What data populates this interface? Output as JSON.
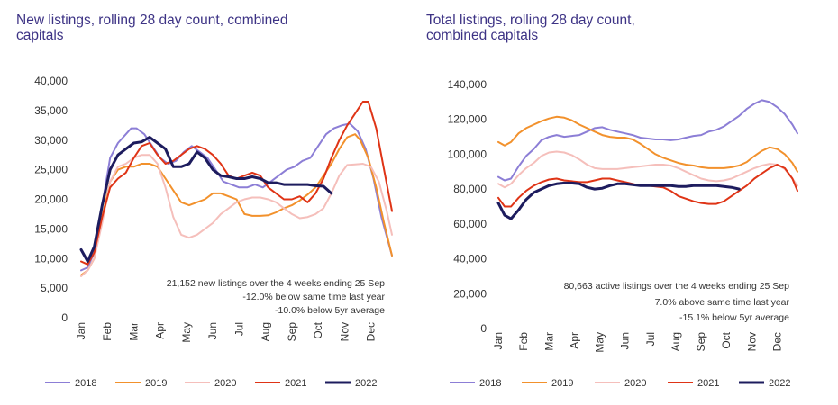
{
  "series_colors": {
    "2018": "#8c7ed6",
    "2019": "#f2912c",
    "2020": "#f5bfbb",
    "2021": "#df3416",
    "2022": "#1d1c5e"
  },
  "chart_data": [
    {
      "type": "line",
      "title_lines": [
        "New listings, rolling 28 day count, combined",
        "capitals"
      ],
      "xlabel": "",
      "ylabel": "",
      "ylim": [
        0,
        40000
      ],
      "yticks": [
        0,
        5000,
        10000,
        15000,
        20000,
        25000,
        30000,
        35000,
        40000
      ],
      "ytick_labels": [
        "0",
        "5,000",
        "10,000",
        "15,000",
        "20,000",
        "25,000",
        "30,000",
        "35,000",
        "40,000"
      ],
      "categories": [
        "Jan",
        "Feb",
        "Mar",
        "Apr",
        "May",
        "Jun",
        "Jul",
        "Aug",
        "Sep",
        "Oct",
        "Nov",
        "Dec"
      ],
      "xlim": [
        0,
        11.8
      ],
      "grid": false,
      "legend_position": "bottom",
      "annotations": [
        "21,152 new listings over the 4 weeks ending 25 Sep",
        "-12.0% below same time last year",
        "-10.0% below 5yr average"
      ],
      "series": [
        {
          "name": "2018",
          "x": [
            0,
            0.25,
            0.5,
            0.8,
            1.1,
            1.4,
            1.7,
            1.9,
            2.1,
            2.4,
            2.7,
            3.0,
            3.3,
            3.6,
            3.9,
            4.2,
            4.5,
            4.8,
            5.1,
            5.4,
            5.7,
            6.0,
            6.3,
            6.6,
            6.9,
            7.2,
            7.5,
            7.8,
            8.1,
            8.4,
            8.7,
            9.0,
            9.3,
            9.6,
            9.9,
            10.2,
            10.5,
            10.8,
            11.1,
            11.4,
            11.8
          ],
          "values": [
            8000,
            8500,
            11000,
            19000,
            27000,
            29500,
            31000,
            32000,
            32000,
            31000,
            29000,
            27000,
            26000,
            26500,
            28000,
            29000,
            28000,
            27000,
            25000,
            23000,
            22500,
            22000,
            22000,
            22500,
            22000,
            23000,
            24000,
            25000,
            25500,
            26500,
            27000,
            29000,
            31000,
            32000,
            32500,
            32800,
            31500,
            28500,
            23500,
            17000,
            10500
          ]
        },
        {
          "name": "2019",
          "x": [
            0,
            0.25,
            0.5,
            0.8,
            1.1,
            1.4,
            1.7,
            2.0,
            2.3,
            2.6,
            2.9,
            3.2,
            3.5,
            3.8,
            4.1,
            4.4,
            4.7,
            5.0,
            5.3,
            5.6,
            5.9,
            6.2,
            6.5,
            6.8,
            7.1,
            7.4,
            7.7,
            8.0,
            8.3,
            8.6,
            8.9,
            9.2,
            9.5,
            9.8,
            10.1,
            10.4,
            10.6,
            10.9,
            11.2,
            11.5,
            11.8
          ],
          "values": [
            7200,
            8000,
            10000,
            17000,
            23000,
            25000,
            25500,
            25500,
            26000,
            26000,
            25500,
            23500,
            21500,
            19500,
            19000,
            19500,
            20000,
            21000,
            21000,
            20500,
            20000,
            17500,
            17200,
            17200,
            17300,
            17800,
            18500,
            19000,
            19800,
            20800,
            22000,
            24000,
            26000,
            28500,
            30500,
            31000,
            30000,
            27000,
            22000,
            16000,
            10500
          ]
        },
        {
          "name": "2020",
          "x": [
            0,
            0.25,
            0.5,
            0.8,
            1.1,
            1.4,
            1.7,
            2.0,
            2.3,
            2.6,
            2.9,
            3.2,
            3.5,
            3.8,
            4.1,
            4.4,
            4.7,
            5.0,
            5.3,
            5.6,
            5.9,
            6.2,
            6.5,
            6.8,
            7.1,
            7.4,
            7.7,
            8.0,
            8.3,
            8.6,
            8.9,
            9.2,
            9.5,
            9.8,
            10.1,
            10.4,
            10.7,
            11.0,
            11.3,
            11.6,
            11.8
          ],
          "values": [
            7000,
            8000,
            10000,
            16000,
            23000,
            25500,
            26000,
            27000,
            27500,
            27500,
            26000,
            22000,
            17000,
            14000,
            13500,
            14000,
            15000,
            16000,
            17500,
            18500,
            19500,
            20000,
            20300,
            20300,
            20000,
            19500,
            18500,
            17500,
            16800,
            17000,
            17500,
            18500,
            21000,
            24000,
            25800,
            25900,
            26000,
            25500,
            23000,
            18000,
            14000
          ]
        },
        {
          "name": "2021",
          "x": [
            0,
            0.25,
            0.5,
            0.8,
            1.1,
            1.4,
            1.7,
            2.0,
            2.3,
            2.6,
            2.9,
            3.2,
            3.5,
            3.8,
            4.1,
            4.4,
            4.7,
            5.0,
            5.3,
            5.6,
            5.9,
            6.2,
            6.5,
            6.8,
            7.1,
            7.4,
            7.7,
            8.0,
            8.3,
            8.6,
            8.9,
            9.2,
            9.5,
            9.8,
            10.1,
            10.4,
            10.7,
            10.9,
            11.2,
            11.5,
            11.8
          ],
          "values": [
            9500,
            9000,
            11000,
            17000,
            22000,
            23500,
            24500,
            27000,
            29000,
            29500,
            27500,
            26000,
            26500,
            27500,
            28500,
            29000,
            28500,
            27500,
            26000,
            24000,
            23500,
            24000,
            24500,
            24000,
            22000,
            21000,
            20000,
            20000,
            20500,
            19500,
            21000,
            23500,
            27000,
            30000,
            32500,
            34500,
            36500,
            36500,
            32000,
            25000,
            18000
          ]
        },
        {
          "name": "2022",
          "x": [
            0,
            0.25,
            0.5,
            0.8,
            1.1,
            1.4,
            1.7,
            2.0,
            2.3,
            2.6,
            2.9,
            3.2,
            3.5,
            3.8,
            4.1,
            4.4,
            4.7,
            5.0,
            5.3,
            5.6,
            5.9,
            6.2,
            6.5,
            6.8,
            7.1,
            7.4,
            7.7,
            8.0,
            8.3,
            8.6,
            8.9,
            9.2,
            9.5
          ],
          "values": [
            11500,
            9500,
            12000,
            19000,
            25000,
            27500,
            28500,
            29500,
            29700,
            30500,
            29500,
            28500,
            25500,
            25500,
            26000,
            28000,
            27000,
            25000,
            24000,
            23800,
            23500,
            23500,
            23800,
            23500,
            22800,
            22800,
            22500,
            22500,
            22500,
            22500,
            22300,
            22200,
            21000
          ]
        }
      ]
    },
    {
      "type": "line",
      "title_lines": [
        "Total listings, rolling 28 day count,",
        "combined capitals"
      ],
      "xlabel": "",
      "ylabel": "",
      "ylim": [
        0,
        140000
      ],
      "yticks": [
        0,
        20000,
        40000,
        60000,
        80000,
        100000,
        120000,
        140000
      ],
      "ytick_labels": [
        "0",
        "20,000",
        "40,000",
        "60,000",
        "80,000",
        "100,000",
        "120,000",
        "140,000"
      ],
      "categories": [
        "Jan",
        "Feb",
        "Mar",
        "Apr",
        "May",
        "Jun",
        "Jul",
        "Aug",
        "Sep",
        "Oct",
        "Nov",
        "Dec"
      ],
      "xlim": [
        0,
        11.8
      ],
      "grid": false,
      "legend_position": "bottom",
      "annotations": [
        "80,663 active listings over the 4 weeks ending 25 Sep",
        "7.0% above same time last year",
        "-15.1% below 5yr average"
      ],
      "series": [
        {
          "name": "2018",
          "x": [
            0,
            0.25,
            0.5,
            0.8,
            1.1,
            1.4,
            1.7,
            2.0,
            2.3,
            2.6,
            2.9,
            3.2,
            3.5,
            3.8,
            4.1,
            4.4,
            4.7,
            5.0,
            5.3,
            5.6,
            5.9,
            6.2,
            6.5,
            6.8,
            7.1,
            7.4,
            7.7,
            8.0,
            8.3,
            8.6,
            8.9,
            9.2,
            9.5,
            9.8,
            10.1,
            10.4,
            10.7,
            11.0,
            11.3,
            11.6,
            11.8
          ],
          "values": [
            87000,
            85000,
            86000,
            93000,
            99000,
            103000,
            108000,
            110000,
            111000,
            110000,
            110500,
            111000,
            113000,
            115000,
            115500,
            114000,
            113000,
            112000,
            111000,
            109500,
            109000,
            108500,
            108500,
            108000,
            108500,
            109500,
            110500,
            111000,
            113000,
            114000,
            116000,
            119000,
            122000,
            126000,
            129000,
            131000,
            130000,
            127000,
            123000,
            117000,
            112000
          ]
        },
        {
          "name": "2019",
          "x": [
            0,
            0.25,
            0.5,
            0.8,
            1.1,
            1.4,
            1.7,
            2.0,
            2.3,
            2.6,
            2.9,
            3.2,
            3.5,
            3.8,
            4.1,
            4.4,
            4.7,
            5.0,
            5.3,
            5.6,
            5.9,
            6.2,
            6.5,
            6.8,
            7.1,
            7.4,
            7.7,
            8.0,
            8.3,
            8.6,
            8.9,
            9.2,
            9.5,
            9.8,
            10.1,
            10.4,
            10.7,
            11.0,
            11.3,
            11.6,
            11.8
          ],
          "values": [
            107000,
            105000,
            107000,
            112000,
            115000,
            117000,
            119000,
            120500,
            121500,
            121000,
            119500,
            117000,
            115000,
            113000,
            111000,
            110000,
            109500,
            109500,
            108500,
            106000,
            103000,
            100000,
            98000,
            96500,
            95000,
            94000,
            93500,
            92500,
            92000,
            92000,
            92000,
            92500,
            93500,
            95500,
            99000,
            102000,
            104000,
            103000,
            100000,
            95000,
            90000
          ]
        },
        {
          "name": "2020",
          "x": [
            0,
            0.25,
            0.5,
            0.8,
            1.1,
            1.4,
            1.7,
            2.0,
            2.3,
            2.6,
            2.9,
            3.2,
            3.5,
            3.8,
            4.1,
            4.4,
            4.7,
            5.0,
            5.3,
            5.6,
            5.9,
            6.2,
            6.5,
            6.8,
            7.1,
            7.4,
            7.7,
            8.0,
            8.3,
            8.6,
            8.9,
            9.2,
            9.5,
            9.8,
            10.1,
            10.4,
            10.7,
            11.0,
            11.3,
            11.6,
            11.8
          ],
          "values": [
            83000,
            81000,
            83000,
            88000,
            92000,
            95000,
            99000,
            101000,
            101500,
            101000,
            99500,
            97000,
            94000,
            92000,
            91500,
            91500,
            91500,
            92000,
            92500,
            93000,
            93500,
            94000,
            94000,
            93500,
            92000,
            90000,
            88000,
            86000,
            85000,
            84500,
            85000,
            86000,
            88000,
            90000,
            92000,
            93500,
            94500,
            94000,
            91500,
            86000,
            82000
          ]
        },
        {
          "name": "2021",
          "x": [
            0,
            0.25,
            0.5,
            0.8,
            1.1,
            1.4,
            1.7,
            2.0,
            2.3,
            2.6,
            2.9,
            3.2,
            3.5,
            3.8,
            4.1,
            4.4,
            4.7,
            5.0,
            5.3,
            5.6,
            5.9,
            6.2,
            6.5,
            6.8,
            7.1,
            7.4,
            7.7,
            8.0,
            8.3,
            8.6,
            8.9,
            9.2,
            9.5,
            9.8,
            10.1,
            10.4,
            10.7,
            11.0,
            11.3,
            11.6,
            11.8
          ],
          "values": [
            75000,
            70000,
            70000,
            75000,
            79000,
            82000,
            84000,
            85500,
            86000,
            85000,
            84500,
            84000,
            84000,
            85000,
            86000,
            86000,
            85000,
            84000,
            83000,
            82000,
            82000,
            81500,
            81000,
            79000,
            76000,
            74500,
            73000,
            72000,
            71500,
            71500,
            73000,
            76000,
            79000,
            82000,
            86000,
            89000,
            92000,
            94000,
            92000,
            86000,
            79000
          ]
        },
        {
          "name": "2022",
          "x": [
            0,
            0.25,
            0.5,
            0.8,
            1.1,
            1.4,
            1.7,
            2.0,
            2.3,
            2.6,
            2.9,
            3.2,
            3.5,
            3.8,
            4.1,
            4.4,
            4.7,
            5.0,
            5.3,
            5.6,
            5.9,
            6.2,
            6.5,
            6.8,
            7.1,
            7.4,
            7.7,
            8.0,
            8.3,
            8.6,
            8.9,
            9.2,
            9.5
          ],
          "values": [
            72000,
            65000,
            63000,
            68000,
            74000,
            78000,
            80000,
            82000,
            83000,
            83500,
            83500,
            83000,
            81000,
            80000,
            80500,
            82000,
            83000,
            83000,
            82500,
            82000,
            82000,
            82000,
            82000,
            82000,
            81500,
            81500,
            82000,
            82000,
            82000,
            82000,
            81500,
            81000,
            80000
          ]
        }
      ]
    }
  ]
}
